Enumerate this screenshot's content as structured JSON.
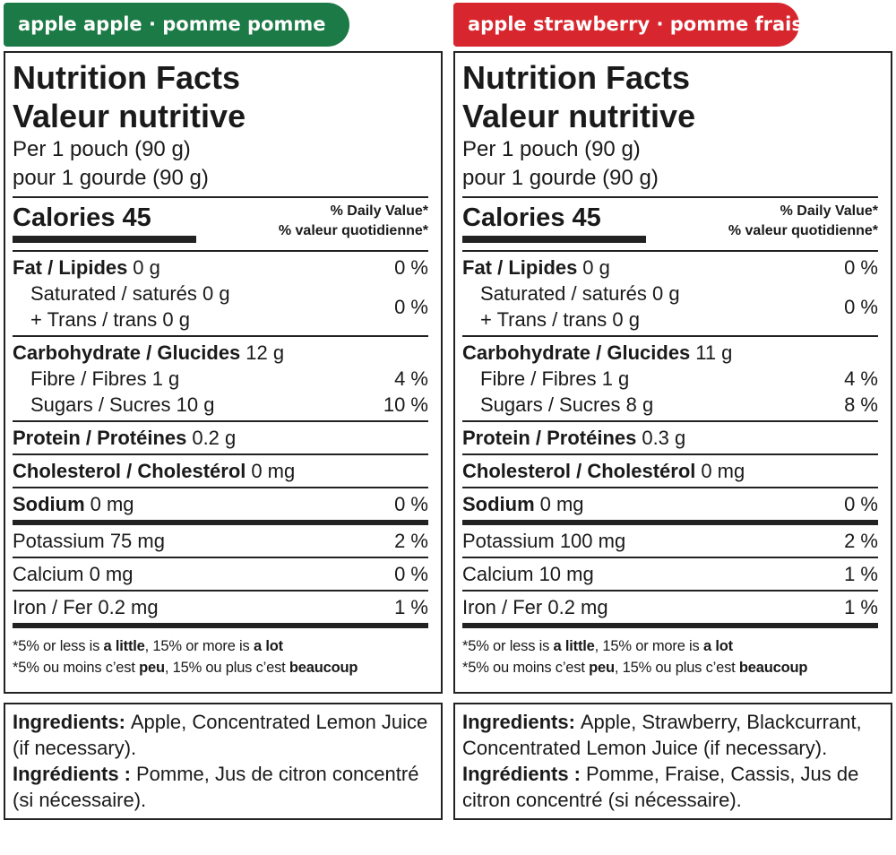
{
  "panels": [
    {
      "tab": "apple apple · pomme pomme",
      "tab_color": "#1c7a46",
      "title": [
        "Nutrition Facts",
        "Valeur nutritive"
      ],
      "serving": [
        "Per 1 pouch (90 g)",
        "pour 1 gourde (90 g)"
      ],
      "calories": "Calories 45",
      "daily_value": [
        "% Daily Value*",
        "% valeur quotidienne*"
      ],
      "groups": [
        {
          "lines": [
            {
              "bold": "Fat / Lipides",
              "text": "0 g",
              "dv": "0 %"
            },
            {
              "text": "Saturated / saturés 0 g",
              "text2": "+ Trans / trans 0 g",
              "dv": "0 %",
              "indent": true
            }
          ],
          "rule": "thin"
        },
        {
          "lines": [
            {
              "bold": "Carbohydrate / Glucides",
              "text": "12 g"
            },
            {
              "text": "Fibre / Fibres 1 g",
              "dv": "4 %",
              "indent": true
            },
            {
              "text": "Sugars / Sucres 10 g",
              "dv": "10 %",
              "indent": true
            }
          ],
          "rule": "thin"
        },
        {
          "lines": [
            {
              "bold": "Protein / Protéines",
              "text": "0.2 g"
            }
          ],
          "rule": "thin"
        },
        {
          "lines": [
            {
              "bold": "Cholesterol / Cholestérol",
              "text": "0 mg"
            }
          ],
          "rule": "thin"
        },
        {
          "lines": [
            {
              "bold": "Sodium",
              "text": "0 mg",
              "dv": "0 %"
            }
          ],
          "rule": "thick"
        },
        {
          "lines": [
            {
              "text": "Potassium 75 mg",
              "dv": "2 %"
            }
          ],
          "rule": "thin"
        },
        {
          "lines": [
            {
              "text": "Calcium 0 mg",
              "dv": "0 %"
            }
          ],
          "rule": "thin"
        },
        {
          "lines": [
            {
              "text": "Iron / Fer 0.2 mg",
              "dv": "1 %"
            }
          ],
          "rule": "thick"
        }
      ],
      "footnotes": [
        [
          {
            "text": "*5% or less is "
          },
          {
            "bold": "a little"
          },
          {
            "text": ", 15% or more is "
          },
          {
            "bold": "a lot"
          }
        ],
        [
          {
            "text": "*5% ou moins c’est "
          },
          {
            "bold": "peu"
          },
          {
            "text": ", 15% ou plus c’est "
          },
          {
            "bold": "beaucoup"
          }
        ]
      ],
      "ingredients": [
        {
          "bold": "Ingredients:",
          "text": "Apple, Concentrated Lemon Juice (if necessary)."
        },
        {
          "bold": "Ingrédients :",
          "text": "Pomme, Jus de citron concentré (si nécessaire)."
        }
      ]
    },
    {
      "tab": "apple strawberry · pomme fraise",
      "tab_color": "#d8262e",
      "title": [
        "Nutrition Facts",
        "Valeur nutritive"
      ],
      "serving": [
        "Per 1 pouch (90 g)",
        "pour 1 gourde (90 g)"
      ],
      "calories": "Calories 45",
      "daily_value": [
        "% Daily Value*",
        "% valeur quotidienne*"
      ],
      "groups": [
        {
          "lines": [
            {
              "bold": "Fat / Lipides",
              "text": "0 g",
              "dv": "0 %"
            },
            {
              "text": "Saturated / saturés 0 g",
              "text2": "+ Trans / trans 0 g",
              "dv": "0 %",
              "indent": true
            }
          ],
          "rule": "thin"
        },
        {
          "lines": [
            {
              "bold": "Carbohydrate / Glucides",
              "text": "11 g"
            },
            {
              "text": "Fibre / Fibres 1 g",
              "dv": "4 %",
              "indent": true
            },
            {
              "text": "Sugars / Sucres 8 g",
              "dv": "8 %",
              "indent": true
            }
          ],
          "rule": "thin"
        },
        {
          "lines": [
            {
              "bold": "Protein / Protéines",
              "text": "0.3 g"
            }
          ],
          "rule": "thin"
        },
        {
          "lines": [
            {
              "bold": "Cholesterol / Cholestérol",
              "text": "0 mg"
            }
          ],
          "rule": "thin"
        },
        {
          "lines": [
            {
              "bold": "Sodium",
              "text": "0 mg",
              "dv": "0 %"
            }
          ],
          "rule": "thick"
        },
        {
          "lines": [
            {
              "text": "Potassium 100 mg",
              "dv": "2 %"
            }
          ],
          "rule": "thin"
        },
        {
          "lines": [
            {
              "text": "Calcium 10 mg",
              "dv": "1 %"
            }
          ],
          "rule": "thin"
        },
        {
          "lines": [
            {
              "text": "Iron / Fer 0.2 mg",
              "dv": "1 %"
            }
          ],
          "rule": "thick"
        }
      ],
      "footnotes": [
        [
          {
            "text": "*5% or less is "
          },
          {
            "bold": "a little"
          },
          {
            "text": ", 15% or more is "
          },
          {
            "bold": "a lot"
          }
        ],
        [
          {
            "text": "*5% ou moins c’est "
          },
          {
            "bold": "peu"
          },
          {
            "text": ", 15% ou plus c’est "
          },
          {
            "bold": "beaucoup"
          }
        ]
      ],
      "ingredients": [
        {
          "bold": "Ingredients:",
          "text": "Apple, Strawberry, Blackcurrant, Concentrated Lemon Juice (if necessary)."
        },
        {
          "bold": "Ingrédients :",
          "text": "Pomme, Fraise, Cassis, Jus de citron concentré (si nécessaire)."
        }
      ]
    }
  ]
}
